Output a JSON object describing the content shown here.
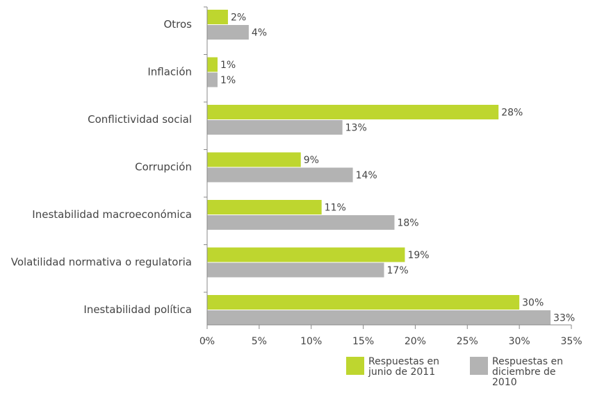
{
  "chart_data": {
    "type": "bar",
    "orientation": "horizontal",
    "categories": [
      "Otros",
      "Inflación",
      "Conflictividad social",
      "Corrupción",
      "Inestabilidad macroeconómica",
      "Volatilidad normativa o regulatoria",
      "Inestabilidad política"
    ],
    "series": [
      {
        "name": "Respuestas en junio de 2011",
        "color": "#bed62f",
        "values": [
          2,
          1,
          28,
          9,
          11,
          19,
          30
        ],
        "labels": [
          "2%",
          "1%",
          "28%",
          "9%",
          "11%",
          "19%",
          "30%"
        ]
      },
      {
        "name": "Respuestas en diciembre de 2010",
        "color": "#b3b3b3",
        "values": [
          4,
          1,
          13,
          14,
          18,
          17,
          33
        ],
        "labels": [
          "4%",
          "1%",
          "13%",
          "14%",
          "18%",
          "17%",
          "33%"
        ]
      }
    ],
    "xlim": [
      0,
      35
    ],
    "xticks": [
      0,
      5,
      10,
      15,
      20,
      25,
      30,
      35
    ],
    "xtick_labels": [
      "0%",
      "5%",
      "10%",
      "15%",
      "20%",
      "25%",
      "30%",
      "35%"
    ],
    "grid": false,
    "legend_position": "bottom-right"
  },
  "legend": {
    "items": [
      {
        "line1": "Respuestas en",
        "line2": "junio de 2011",
        "color": "#bed62f"
      },
      {
        "line1": "Respuestas en",
        "line2": "diciembre de 2010",
        "color": "#b3b3b3"
      }
    ]
  }
}
